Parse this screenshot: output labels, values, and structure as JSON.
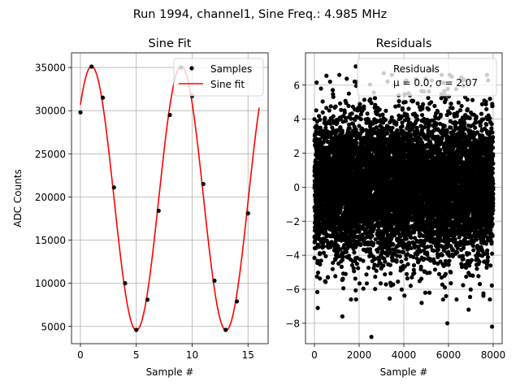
{
  "figure_title": "Run 1994, channel1, Sine Freq.: 4.985 MHz",
  "chart_data": [
    {
      "type": "scatter+line",
      "title": "Sine Fit",
      "xlabel": "Sample #",
      "ylabel": "ADC Counts",
      "xlim": [
        -0.8,
        16.8
      ],
      "ylim": [
        3000,
        36700
      ],
      "xticks": [
        0,
        5,
        10,
        15
      ],
      "yticks": [
        5000,
        10000,
        15000,
        20000,
        25000,
        30000,
        35000
      ],
      "grid": true,
      "legend_position": "top-right",
      "legend": [
        {
          "label": "Samples",
          "marker": "dot",
          "color": "#000000"
        },
        {
          "label": "Sine fit",
          "marker": "line",
          "color": "#ff0000"
        }
      ],
      "samples": {
        "name": "Samples",
        "x": [
          0,
          1,
          2,
          3,
          4,
          5,
          6,
          7,
          8,
          9,
          10,
          11,
          12,
          13,
          14,
          15
        ],
        "y": [
          29800,
          35100,
          31500,
          21100,
          10000,
          4600,
          8100,
          18400,
          29500,
          35000,
          31700,
          21500,
          10300,
          4600,
          7900,
          18100
        ]
      },
      "fit": {
        "name": "Sine fit",
        "offset": 19850,
        "amplitude": 15300,
        "period": 8.02,
        "peak_x": 1.0,
        "x_range": [
          0,
          16
        ]
      }
    },
    {
      "type": "scatter",
      "title": "Residuals",
      "xlabel": "Sample #",
      "ylabel": "",
      "xlim": [
        -400,
        8400
      ],
      "ylim": [
        -9.2,
        7.9
      ],
      "xticks": [
        0,
        2000,
        4000,
        6000,
        8000
      ],
      "yticks": [
        -8,
        -6,
        -4,
        -2,
        0,
        2,
        4,
        6
      ],
      "grid": true,
      "legend_position": "top-right",
      "legend": [
        {
          "label": "Residuals",
          "marker": "dot",
          "color": "#000000"
        }
      ],
      "legend_stats": "μ = 0.0, σ = 2.07",
      "residuals": {
        "name": "Residuals",
        "n_points": 8000,
        "mean": 0.0,
        "std": 2.07,
        "outliers": [
          {
            "x": 1850,
            "y": 7.1
          },
          {
            "x": 2550,
            "y": -8.8
          },
          {
            "x": 5950,
            "y": -8.0
          },
          {
            "x": 7950,
            "y": -8.2
          },
          {
            "x": 150,
            "y": -7.1
          },
          {
            "x": 4800,
            "y": -6.8
          },
          {
            "x": 6900,
            "y": -7.2
          },
          {
            "x": 3100,
            "y": 6.7
          },
          {
            "x": 700,
            "y": 6.2
          },
          {
            "x": 5300,
            "y": 6.9
          },
          {
            "x": 1250,
            "y": -7.6
          },
          {
            "x": 6150,
            "y": 6.5
          }
        ]
      }
    }
  ]
}
